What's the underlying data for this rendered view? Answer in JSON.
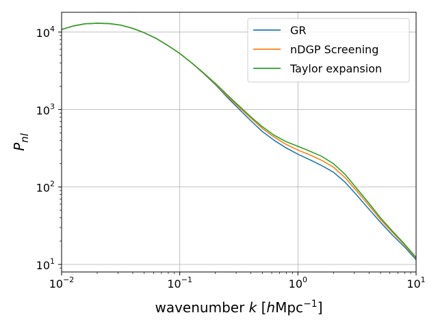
{
  "chart_data": {
    "type": "line",
    "xscale": "log",
    "yscale": "log",
    "xlim": [
      0.01,
      10
    ],
    "ylim": [
      8,
      18000
    ],
    "grid": true,
    "legend_position": "top-right",
    "xlabel": {
      "prefix": "wavenumber ",
      "k": "k",
      "open": " [",
      "h": "h",
      "mpc": "Mpc",
      "exp": "−1",
      "close": "]"
    },
    "ylabel": {
      "base": "P",
      "sub": "nl"
    },
    "x_ticks": [
      {
        "value": 0.01,
        "base": "10",
        "exp": "−2"
      },
      {
        "value": 0.1,
        "base": "10",
        "exp": "−1"
      },
      {
        "value": 1,
        "base": "10",
        "exp": "0"
      },
      {
        "value": 10,
        "base": "10",
        "exp": "1"
      }
    ],
    "y_ticks": [
      {
        "value": 10,
        "base": "10",
        "exp": "1"
      },
      {
        "value": 100,
        "base": "10",
        "exp": "2"
      },
      {
        "value": 1000,
        "base": "10",
        "exp": "3"
      },
      {
        "value": 10000,
        "base": "10",
        "exp": "4"
      }
    ],
    "x": [
      0.01,
      0.0126,
      0.0158,
      0.02,
      0.0251,
      0.0316,
      0.0398,
      0.05,
      0.063,
      0.0794,
      0.1,
      0.126,
      0.158,
      0.2,
      0.251,
      0.316,
      0.398,
      0.5,
      0.63,
      0.794,
      1.0,
      1.26,
      1.58,
      2.0,
      2.51,
      3.16,
      3.98,
      5.0,
      6.3,
      7.94,
      10.0
    ],
    "series": [
      {
        "name": "GR",
        "color": "#1f77b4",
        "values": [
          10800,
          12000,
          12800,
          13000,
          12900,
          12300,
          11200,
          9800,
          8300,
          6700,
          5300,
          4000,
          2950,
          2100,
          1450,
          1020,
          720,
          520,
          400,
          320,
          265,
          225,
          190,
          155,
          115,
          78,
          52,
          35,
          24,
          17,
          11.5
        ]
      },
      {
        "name": "nDGP Screening",
        "color": "#ff7f0e",
        "values": [
          10800,
          12000,
          12800,
          13000,
          12900,
          12300,
          11200,
          9800,
          8300,
          6700,
          5300,
          4000,
          2970,
          2140,
          1510,
          1080,
          780,
          570,
          440,
          355,
          300,
          260,
          222,
          180,
          132,
          88,
          58,
          38,
          26,
          18,
          12
        ]
      },
      {
        "name": "Taylor expansion",
        "color": "#2ca02c",
        "values": [
          10800,
          12000,
          12800,
          13000,
          12900,
          12300,
          11200,
          9800,
          8300,
          6700,
          5300,
          4010,
          3000,
          2180,
          1560,
          1120,
          810,
          600,
          465,
          385,
          335,
          290,
          250,
          200,
          145,
          95,
          62,
          40,
          27,
          18.5,
          12.3
        ]
      }
    ]
  }
}
